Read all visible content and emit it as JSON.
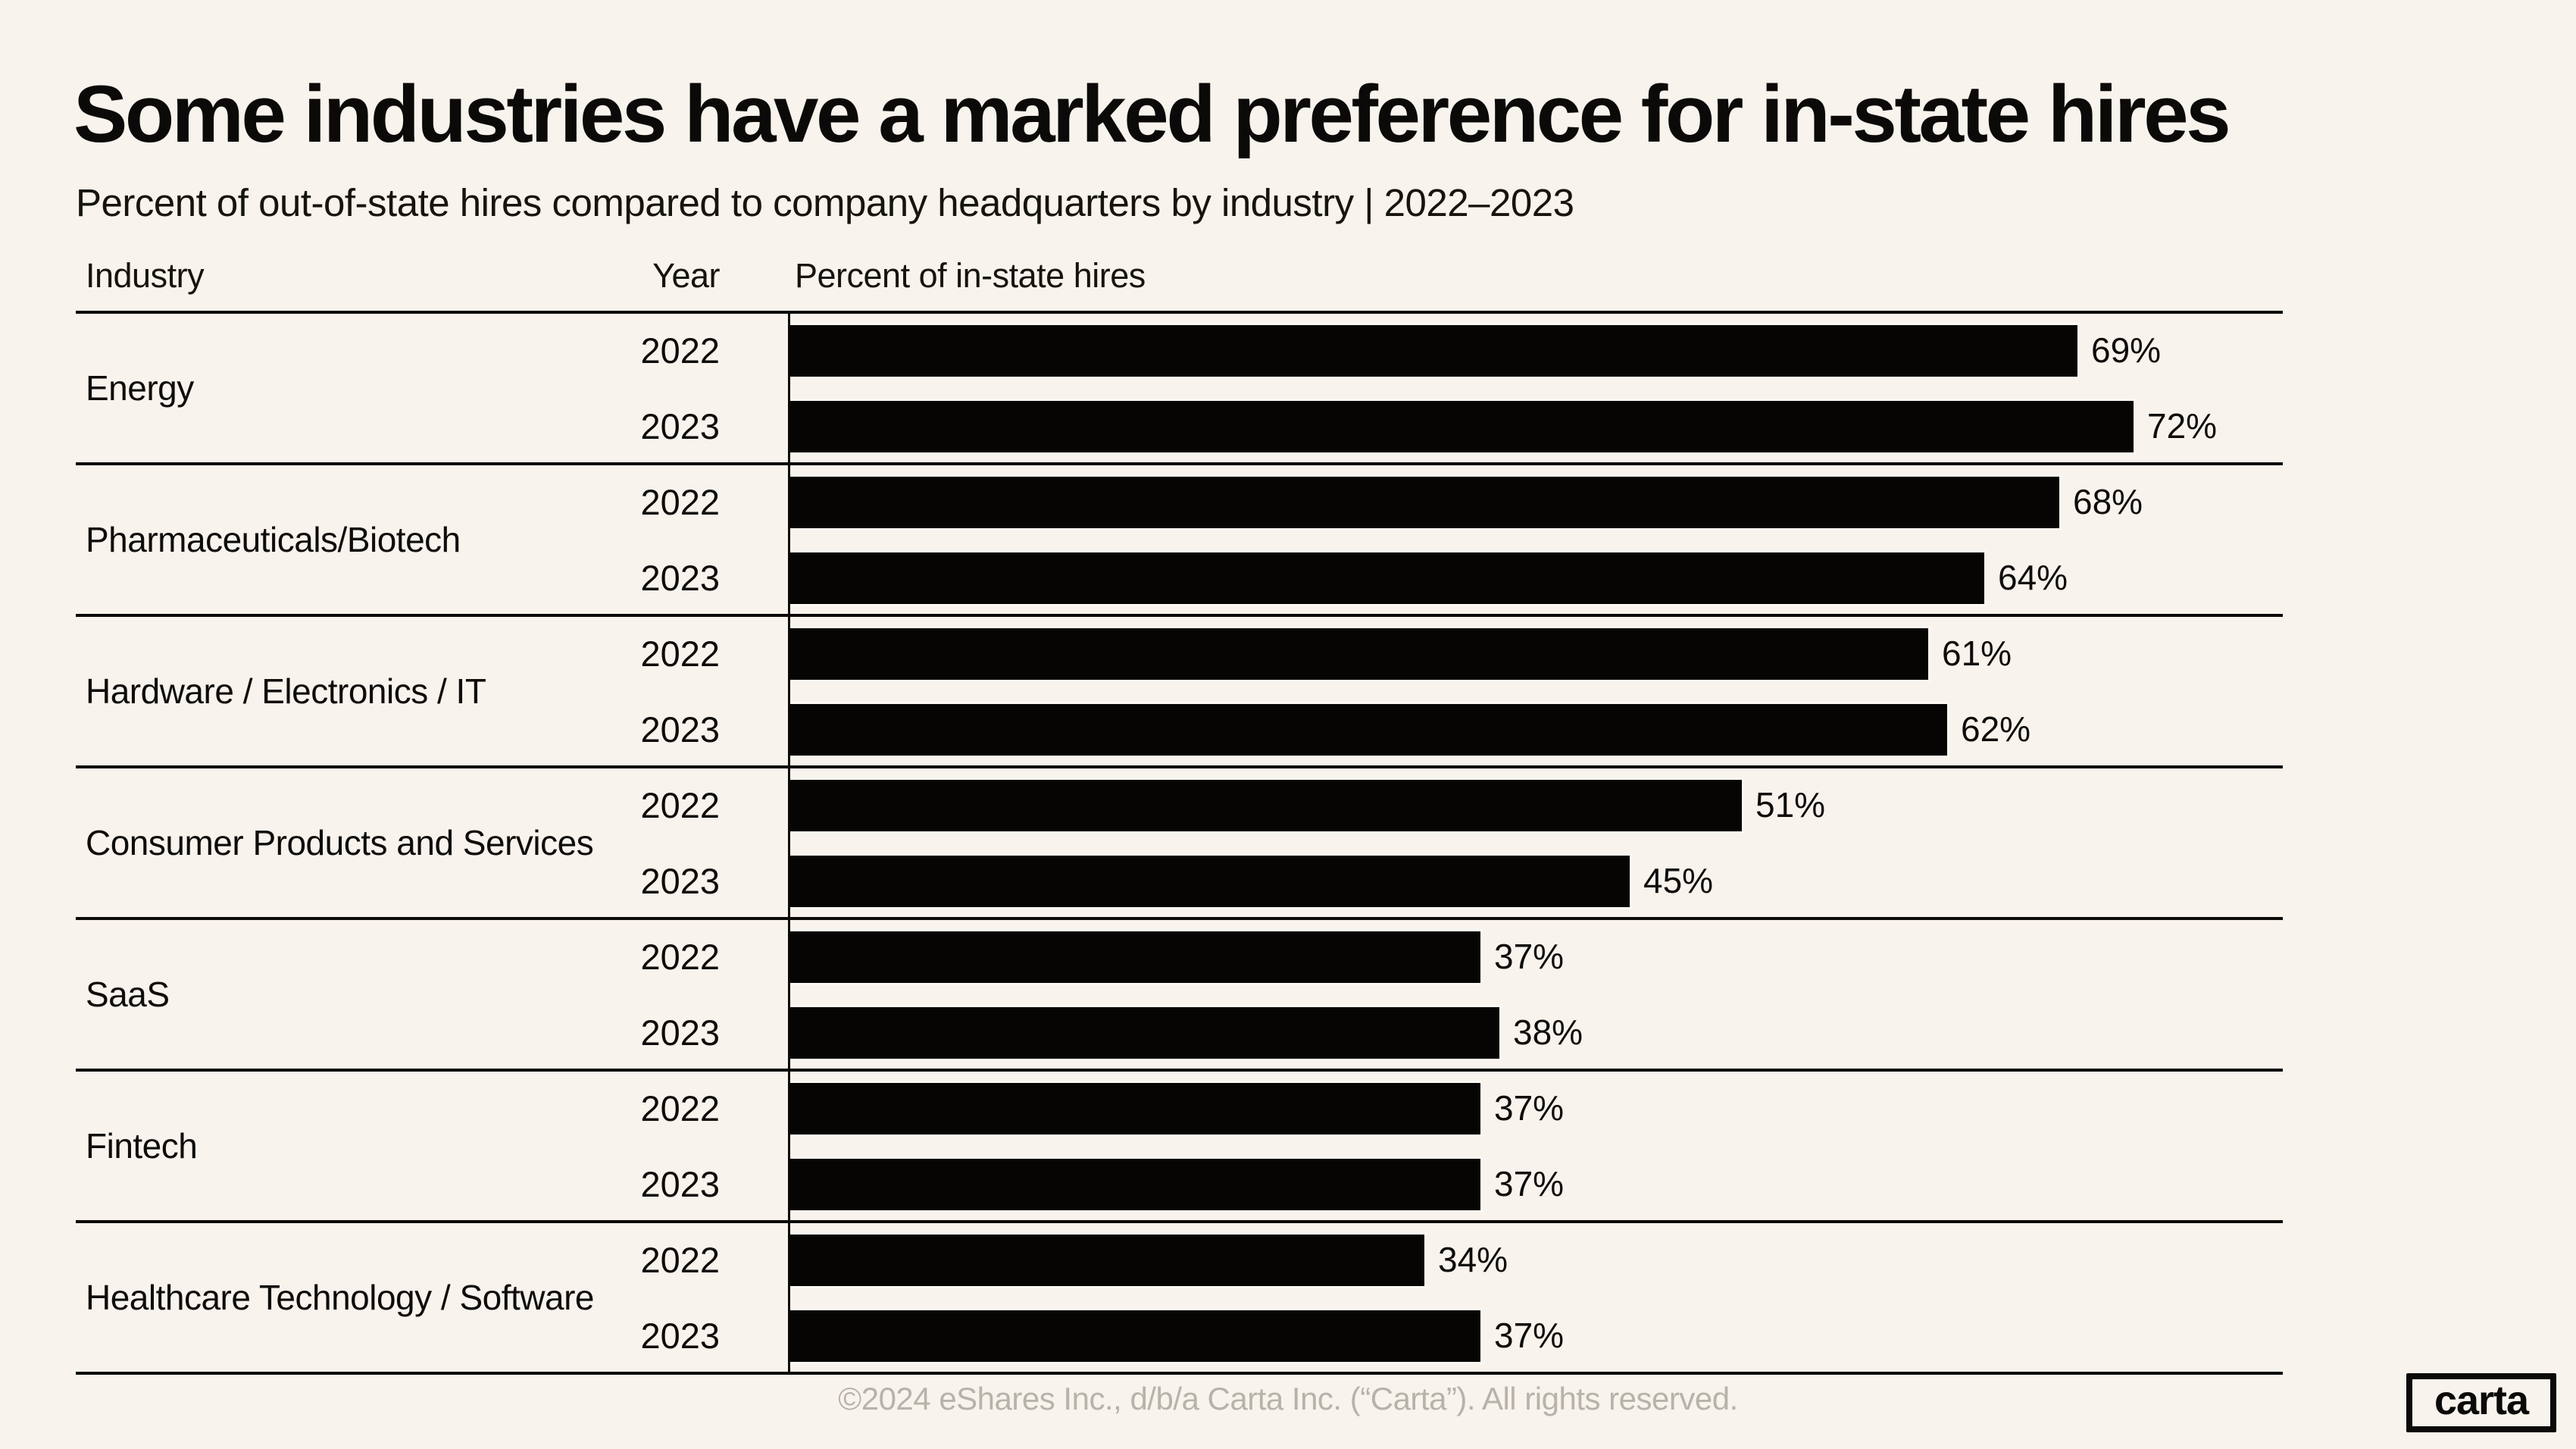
{
  "page": {
    "title": "Some industries have a marked preference for in-state hires",
    "subtitle": "Percent of out-of-state hires compared to company headquarters by industry |  2022–2023"
  },
  "table": {
    "headers": [
      "Industry",
      "Year",
      "Percent of in-state hires"
    ]
  },
  "chart_data": {
    "type": "bar",
    "orientation": "horizontal",
    "title": "Some industries have a marked preference for in-state hires",
    "subtitle": "Percent of out-of-state hires compared to company headquarters by industry |  2022–2023",
    "unit": "%",
    "xlim": [
      0,
      80
    ],
    "grid": false,
    "bar_color": "#060504",
    "groups": [
      {
        "industry": "Energy",
        "rows": [
          {
            "year": "2022",
            "value": 69,
            "label": "69%"
          },
          {
            "year": "2023",
            "value": 72,
            "label": "72%"
          }
        ]
      },
      {
        "industry": "Pharmaceuticals/Biotech",
        "rows": [
          {
            "year": "2022",
            "value": 68,
            "label": "68%"
          },
          {
            "year": "2023",
            "value": 64,
            "label": "64%"
          }
        ]
      },
      {
        "industry": "Hardware / Electronics / IT",
        "rows": [
          {
            "year": "2022",
            "value": 61,
            "label": "61%"
          },
          {
            "year": "2023",
            "value": 62,
            "label": "62%"
          }
        ]
      },
      {
        "industry": "Consumer Products and Services",
        "rows": [
          {
            "year": "2022",
            "value": 51,
            "label": "51%"
          },
          {
            "year": "2023",
            "value": 45,
            "label": "45%"
          }
        ]
      },
      {
        "industry": "SaaS",
        "rows": [
          {
            "year": "2022",
            "value": 37,
            "label": "37%"
          },
          {
            "year": "2023",
            "value": 38,
            "label": "38%"
          }
        ]
      },
      {
        "industry": "Fintech",
        "rows": [
          {
            "year": "2022",
            "value": 37,
            "label": "37%"
          },
          {
            "year": "2023",
            "value": 37,
            "label": "37%"
          }
        ]
      },
      {
        "industry": "Healthcare Technology / Software",
        "rows": [
          {
            "year": "2022",
            "value": 34,
            "label": "34%"
          },
          {
            "year": "2023",
            "value": 37,
            "label": "37%"
          }
        ]
      }
    ]
  },
  "footer": {
    "copyright": "©2024 eShares Inc., d/b/a Carta Inc. (“Carta”). All rights reserved.",
    "logo_text": "carta"
  },
  "colors": {
    "background": "#F8F3EC",
    "bar": "#060504",
    "text": "#0E0D0B",
    "footer_text": "#B7B2AA",
    "divider": "#0B0A08"
  }
}
